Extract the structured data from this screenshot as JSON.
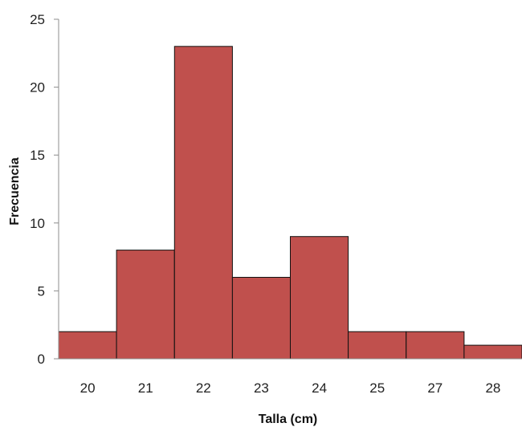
{
  "chart_data": {
    "type": "bar",
    "categories": [
      "20",
      "21",
      "22",
      "23",
      "24",
      "25",
      "27",
      "28"
    ],
    "values": [
      2,
      8,
      23,
      6,
      9,
      2,
      2,
      1
    ],
    "xlabel": "Talla (cm)",
    "ylabel": "Frecuencia",
    "ylim": [
      0,
      25
    ],
    "yticks": [
      "0",
      "5",
      "10",
      "15",
      "20",
      "25"
    ],
    "grid": false,
    "legend": "none",
    "bar_color": "#c0504d",
    "bar_edge_color": "#111111",
    "bar_gap": 0
  }
}
